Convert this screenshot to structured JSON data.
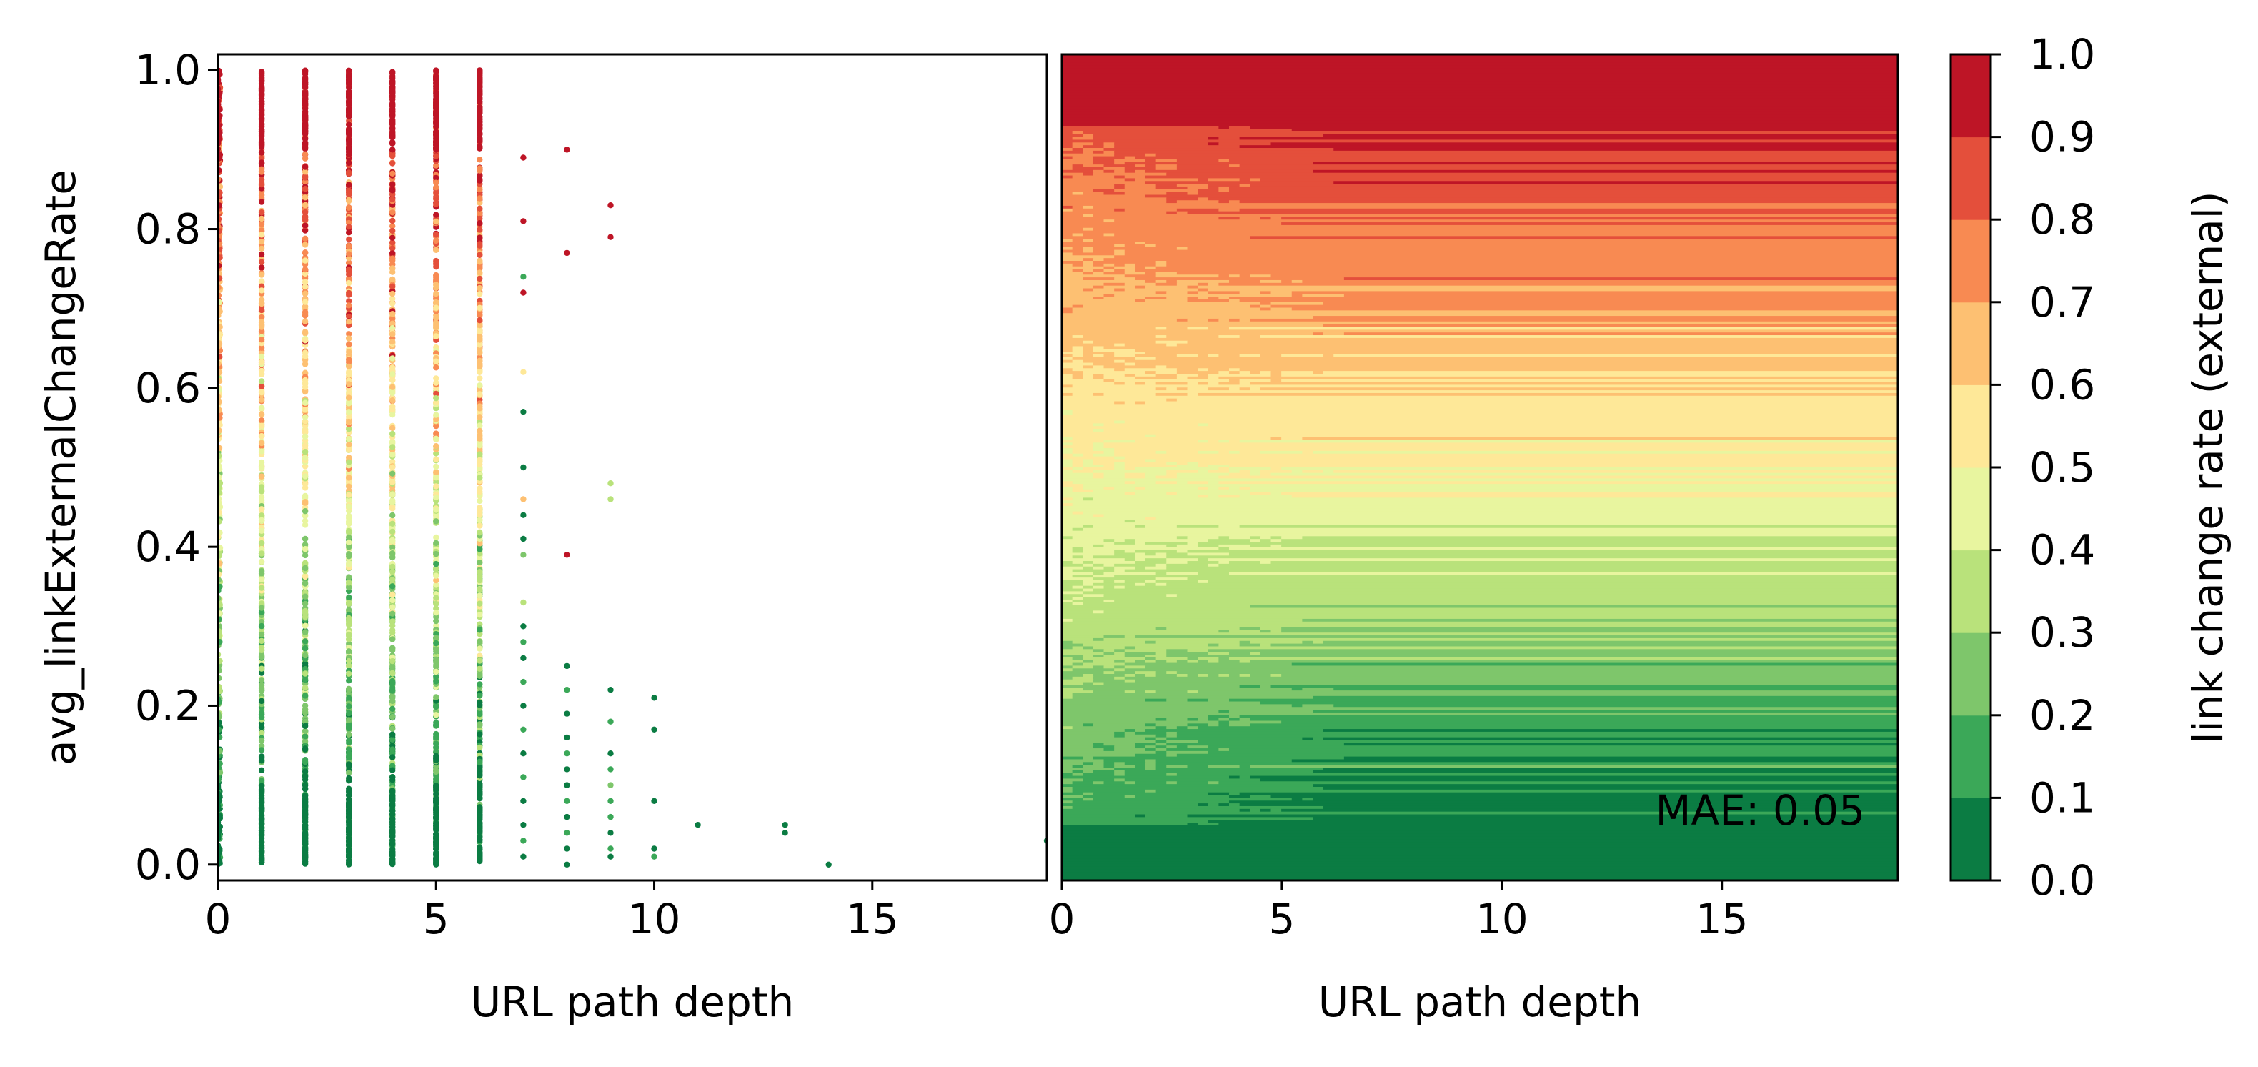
{
  "chart_data": [
    {
      "type": "scatter",
      "xlabel": "URL path depth",
      "ylabel": "avg_linkExternalChangeRate",
      "xlim": [
        0,
        19
      ],
      "ylim": [
        -0.02,
        1.02
      ],
      "xticks": [
        0,
        5,
        10,
        15
      ],
      "yticks": [
        0.0,
        0.2,
        0.4,
        0.6,
        0.8,
        1.0
      ],
      "xtick_labels": [
        "0",
        "5",
        "10",
        "15"
      ],
      "ytick_labels": [
        "0.0",
        "0.2",
        "0.4",
        "0.6",
        "0.8",
        "1.0"
      ],
      "color_by": "link change rate (external)",
      "dense_columns": [
        {
          "x": 0,
          "ymin": 0.0,
          "ymax": 1.0
        },
        {
          "x": 1,
          "ymin": 0.0,
          "ymax": 1.0
        },
        {
          "x": 2,
          "ymin": 0.0,
          "ymax": 1.0
        },
        {
          "x": 3,
          "ymin": 0.0,
          "ymax": 1.0
        },
        {
          "x": 4,
          "ymin": 0.0,
          "ymax": 1.0
        },
        {
          "x": 5,
          "ymin": 0.0,
          "ymax": 1.0
        },
        {
          "x": 6,
          "ymin": 0.0,
          "ymax": 1.0
        }
      ],
      "points": [
        {
          "x": 7,
          "y": 0.89,
          "c": 0.95
        },
        {
          "x": 7,
          "y": 0.81,
          "c": 0.95
        },
        {
          "x": 7,
          "y": 0.74,
          "c": 0.1
        },
        {
          "x": 7,
          "y": 0.72,
          "c": 0.95
        },
        {
          "x": 7,
          "y": 0.62,
          "c": 0.55
        },
        {
          "x": 7,
          "y": 0.57,
          "c": 0.05
        },
        {
          "x": 7,
          "y": 0.5,
          "c": 0.05
        },
        {
          "x": 7,
          "y": 0.46,
          "c": 0.6
        },
        {
          "x": 7,
          "y": 0.44,
          "c": 0.05
        },
        {
          "x": 7,
          "y": 0.41,
          "c": 0.05
        },
        {
          "x": 7,
          "y": 0.39,
          "c": 0.25
        },
        {
          "x": 7,
          "y": 0.33,
          "c": 0.35
        },
        {
          "x": 7,
          "y": 0.3,
          "c": 0.05
        },
        {
          "x": 7,
          "y": 0.28,
          "c": 0.1
        },
        {
          "x": 7,
          "y": 0.26,
          "c": 0.05
        },
        {
          "x": 7,
          "y": 0.23,
          "c": 0.15
        },
        {
          "x": 7,
          "y": 0.2,
          "c": 0.05
        },
        {
          "x": 7,
          "y": 0.17,
          "c": 0.1
        },
        {
          "x": 7,
          "y": 0.14,
          "c": 0.05
        },
        {
          "x": 7,
          "y": 0.11,
          "c": 0.1
        },
        {
          "x": 7,
          "y": 0.08,
          "c": 0.05
        },
        {
          "x": 7,
          "y": 0.05,
          "c": 0.05
        },
        {
          "x": 7,
          "y": 0.03,
          "c": 0.1
        },
        {
          "x": 7,
          "y": 0.01,
          "c": 0.05
        },
        {
          "x": 8,
          "y": 0.9,
          "c": 0.95
        },
        {
          "x": 8,
          "y": 0.77,
          "c": 0.95
        },
        {
          "x": 8,
          "y": 0.39,
          "c": 0.95
        },
        {
          "x": 8,
          "y": 0.25,
          "c": 0.05
        },
        {
          "x": 8,
          "y": 0.22,
          "c": 0.1
        },
        {
          "x": 8,
          "y": 0.19,
          "c": 0.05
        },
        {
          "x": 8,
          "y": 0.16,
          "c": 0.05
        },
        {
          "x": 8,
          "y": 0.14,
          "c": 0.1
        },
        {
          "x": 8,
          "y": 0.12,
          "c": 0.05
        },
        {
          "x": 8,
          "y": 0.1,
          "c": 0.05
        },
        {
          "x": 8,
          "y": 0.08,
          "c": 0.15
        },
        {
          "x": 8,
          "y": 0.06,
          "c": 0.05
        },
        {
          "x": 8,
          "y": 0.04,
          "c": 0.1
        },
        {
          "x": 8,
          "y": 0.02,
          "c": 0.05
        },
        {
          "x": 8,
          "y": 0.0,
          "c": 0.05
        },
        {
          "x": 9,
          "y": 0.83,
          "c": 0.95
        },
        {
          "x": 9,
          "y": 0.79,
          "c": 0.95
        },
        {
          "x": 9,
          "y": 0.48,
          "c": 0.35
        },
        {
          "x": 9,
          "y": 0.46,
          "c": 0.35
        },
        {
          "x": 9,
          "y": 0.22,
          "c": 0.05
        },
        {
          "x": 9,
          "y": 0.18,
          "c": 0.15
        },
        {
          "x": 9,
          "y": 0.14,
          "c": 0.05
        },
        {
          "x": 9,
          "y": 0.12,
          "c": 0.1
        },
        {
          "x": 9,
          "y": 0.1,
          "c": 0.2
        },
        {
          "x": 9,
          "y": 0.08,
          "c": 0.1
        },
        {
          "x": 9,
          "y": 0.06,
          "c": 0.15
        },
        {
          "x": 9,
          "y": 0.04,
          "c": 0.05
        },
        {
          "x": 9,
          "y": 0.02,
          "c": 0.1
        },
        {
          "x": 9,
          "y": 0.01,
          "c": 0.05
        },
        {
          "x": 10,
          "y": 0.21,
          "c": 0.05
        },
        {
          "x": 10,
          "y": 0.17,
          "c": 0.05
        },
        {
          "x": 10,
          "y": 0.08,
          "c": 0.05
        },
        {
          "x": 10,
          "y": 0.02,
          "c": 0.05
        },
        {
          "x": 10,
          "y": 0.01,
          "c": 0.1
        },
        {
          "x": 11,
          "y": 0.05,
          "c": 0.05
        },
        {
          "x": 13,
          "y": 0.05,
          "c": 0.05
        },
        {
          "x": 13,
          "y": 0.04,
          "c": 0.05
        },
        {
          "x": 14,
          "y": 0.0,
          "c": 0.05
        },
        {
          "x": 19,
          "y": 0.03,
          "c": 0.05
        }
      ]
    },
    {
      "type": "heatmap",
      "xlabel": "URL path depth",
      "xlim": [
        0,
        19
      ],
      "ylim": [
        -0.02,
        1.02
      ],
      "xticks": [
        0,
        5,
        10,
        15
      ],
      "xtick_labels": [
        "0",
        "5",
        "10",
        "15"
      ],
      "annotation": "MAE: 0.05",
      "description_of_surface": "predicted link change rate vs path depth (x) and avg_linkExternalChangeRate (y); value ≈ y, blended toward mid-range at shallow depth, horizontal bands beyond depth ≈ 6"
    }
  ],
  "colorbar": {
    "label": "link change rate (external)",
    "levels": [
      0.0,
      0.1,
      0.2,
      0.3,
      0.4,
      0.5,
      0.6,
      0.7,
      0.8,
      0.9,
      1.0
    ],
    "tick_labels": [
      "0.0",
      "0.1",
      "0.2",
      "0.3",
      "0.4",
      "0.5",
      "0.6",
      "0.7",
      "0.8",
      "0.9",
      "1.0"
    ],
    "colors": [
      "#0b7c43",
      "#3ba858",
      "#7ec66b",
      "#b9e27b",
      "#e8f59f",
      "#fee898",
      "#fdc072",
      "#f88a52",
      "#e44f3b",
      "#be1526"
    ]
  }
}
